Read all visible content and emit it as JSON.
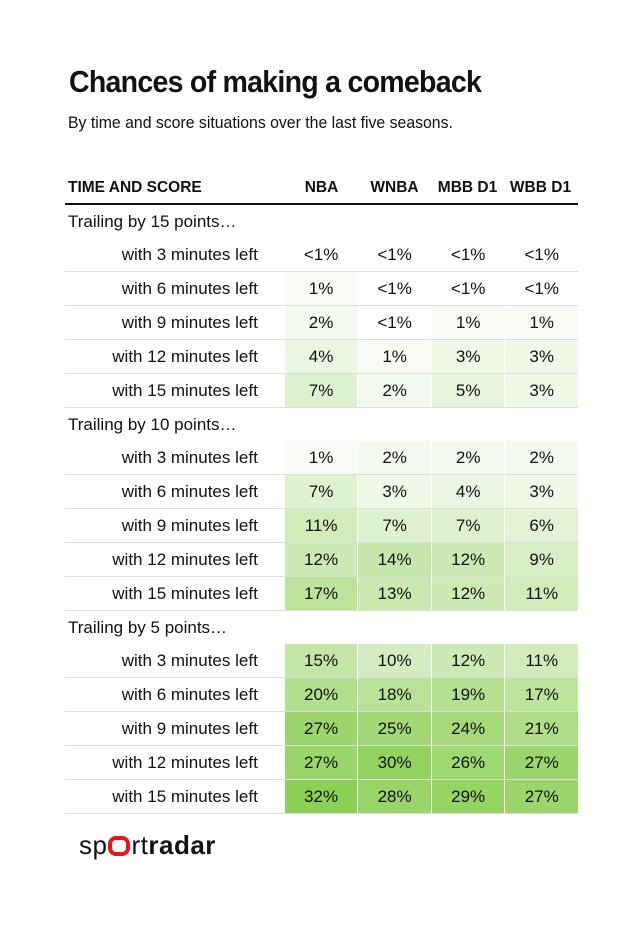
{
  "title": "Chances of making a comeback",
  "subtitle": "By time and score situations over the last five seasons.",
  "logo": "sportradar",
  "colors": {
    "low": "#ffffff",
    "high": "#8ccf55",
    "accent": "#e8141c"
  },
  "chart_data": {
    "type": "table",
    "columns": [
      "TIME AND SCORE",
      "NBA",
      "WNBA",
      "MBB D1",
      "WBB D1"
    ],
    "groups": [
      {
        "label": "Trailing by 15 points…",
        "rows": [
          {
            "label": "with 3 minutes left",
            "values": [
              "<1%",
              "<1%",
              "<1%",
              "<1%"
            ]
          },
          {
            "label": "with 6 minutes left",
            "values": [
              "1%",
              "<1%",
              "<1%",
              "<1%"
            ]
          },
          {
            "label": "with 9 minutes left",
            "values": [
              "2%",
              "<1%",
              "1%",
              "1%"
            ]
          },
          {
            "label": "with 12 minutes left",
            "values": [
              "4%",
              "1%",
              "3%",
              "3%"
            ]
          },
          {
            "label": "with 15 minutes left",
            "values": [
              "7%",
              "2%",
              "5%",
              "3%"
            ]
          }
        ]
      },
      {
        "label": "Trailing by 10 points…",
        "rows": [
          {
            "label": "with 3 minutes left",
            "values": [
              "1%",
              "2%",
              "2%",
              "2%"
            ]
          },
          {
            "label": "with 6 minutes left",
            "values": [
              "7%",
              "3%",
              "4%",
              "3%"
            ]
          },
          {
            "label": "with 9 minutes left",
            "values": [
              "11%",
              "7%",
              "7%",
              "6%"
            ]
          },
          {
            "label": "with 12 minutes left",
            "values": [
              "12%",
              "14%",
              "12%",
              "9%"
            ]
          },
          {
            "label": "with 15 minutes left",
            "values": [
              "17%",
              "13%",
              "12%",
              "11%"
            ]
          }
        ]
      },
      {
        "label": "Trailing by 5 points…",
        "rows": [
          {
            "label": "with 3 minutes left",
            "values": [
              "15%",
              "10%",
              "12%",
              "11%"
            ]
          },
          {
            "label": "with 6 minutes left",
            "values": [
              "20%",
              "18%",
              "19%",
              "17%"
            ]
          },
          {
            "label": "with 9 minutes left",
            "values": [
              "27%",
              "25%",
              "24%",
              "21%"
            ]
          },
          {
            "label": "with 12 minutes left",
            "values": [
              "27%",
              "30%",
              "26%",
              "27%"
            ]
          },
          {
            "label": "with 15 minutes left",
            "values": [
              "32%",
              "28%",
              "29%",
              "27%"
            ]
          }
        ]
      }
    ],
    "color_scale_max": 32
  }
}
